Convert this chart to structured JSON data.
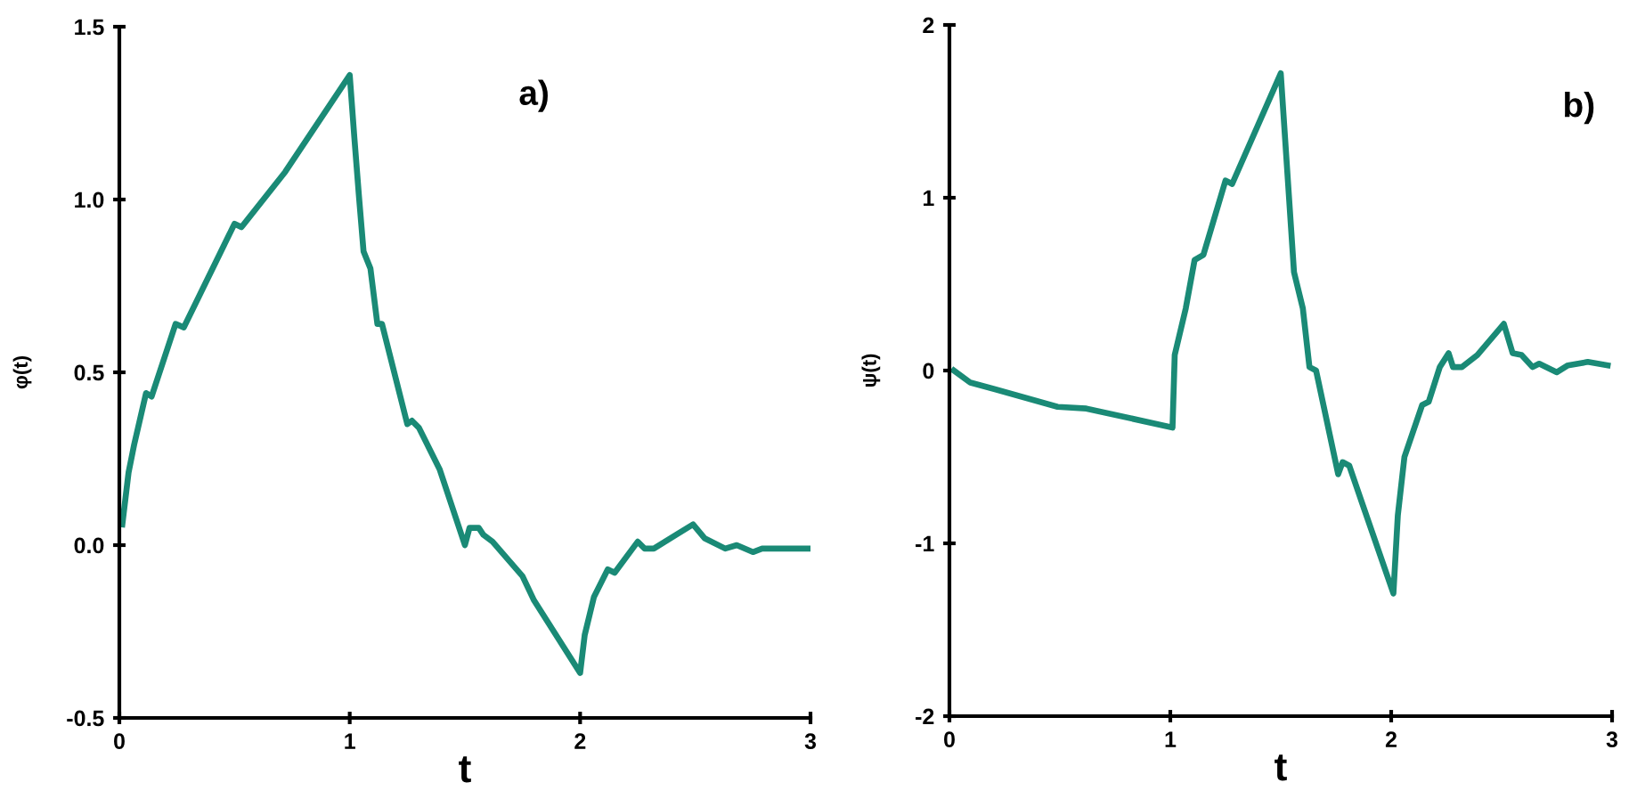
{
  "chart_data": [
    {
      "type": "line",
      "title": "a)",
      "xlabel": "t",
      "ylabel": "φ(t)",
      "xlim": [
        0,
        3
      ],
      "ylim": [
        -0.5,
        1.5
      ],
      "xticks": [
        0,
        1,
        2,
        3
      ],
      "yticks": [
        {
          "value": -0.5,
          "label": "-0.5"
        },
        {
          "value": 0,
          "label": "0.0"
        },
        {
          "value": 0.5,
          "label": "0.5"
        },
        {
          "value": 1,
          "label": "1.0"
        },
        {
          "value": 1.5,
          "label": "1.5"
        }
      ],
      "grid": false,
      "legend": false,
      "series": [
        {
          "color": "#1a8a76",
          "x": [
            0.013,
            0.04,
            0.064,
            0.116,
            0.14,
            0.244,
            0.28,
            0.5,
            0.53,
            0.72,
            1.0,
            1.02,
            1.04,
            1.06,
            1.09,
            1.12,
            1.14,
            1.25,
            1.27,
            1.3,
            1.39,
            1.5,
            1.52,
            1.56,
            1.58,
            1.62,
            1.75,
            1.8,
            2.0,
            2.02,
            2.06,
            2.12,
            2.15,
            2.25,
            2.28,
            2.32,
            2.49,
            2.54,
            2.63,
            2.68,
            2.75,
            2.79,
            3.0
          ],
          "values": [
            0.06,
            0.21,
            0.29,
            0.44,
            0.43,
            0.64,
            0.63,
            0.93,
            0.92,
            1.08,
            1.36,
            1.18,
            1.01,
            0.85,
            0.8,
            0.64,
            0.64,
            0.35,
            0.36,
            0.34,
            0.22,
            0.0,
            0.05,
            0.05,
            0.03,
            0.01,
            -0.09,
            -0.16,
            -0.37,
            -0.26,
            -0.15,
            -0.07,
            -0.08,
            0.01,
            -0.01,
            -0.01,
            0.06,
            0.02,
            -0.01,
            0.0,
            -0.02,
            -0.01,
            -0.01
          ]
        }
      ]
    },
    {
      "type": "line",
      "title": "b)",
      "xlabel": "t",
      "ylabel": "ψ(t)",
      "xlim": [
        0,
        3
      ],
      "ylim": [
        -2,
        2
      ],
      "xticks": [
        0,
        1,
        2,
        3
      ],
      "yticks": [
        {
          "value": -2,
          "label": "-2"
        },
        {
          "value": -1,
          "label": "-1"
        },
        0,
        1,
        2
      ],
      "grid": false,
      "legend": false,
      "series": [
        {
          "color": "#1a8a76",
          "x": [
            0.02,
            0.095,
            0.21,
            0.49,
            0.62,
            1.01,
            1.02,
            1.07,
            1.11,
            1.15,
            1.25,
            1.28,
            1.5,
            1.56,
            1.6,
            1.63,
            1.66,
            1.76,
            1.78,
            1.81,
            1.88,
            2.01,
            2.03,
            2.06,
            2.14,
            2.17,
            2.22,
            2.26,
            2.28,
            2.32,
            2.39,
            2.51,
            2.55,
            2.59,
            2.64,
            2.67,
            2.75,
            2.8,
            2.89,
            2.98
          ],
          "values": [
            0.0,
            -0.07,
            -0.11,
            -0.21,
            -0.22,
            -0.33,
            0.09,
            0.36,
            0.64,
            0.67,
            1.1,
            1.08,
            1.72,
            0.57,
            0.36,
            0.02,
            0.0,
            -0.6,
            -0.53,
            -0.55,
            -0.81,
            -1.29,
            -0.84,
            -0.5,
            -0.2,
            -0.18,
            0.02,
            0.1,
            0.02,
            0.02,
            0.09,
            0.27,
            0.1,
            0.09,
            0.02,
            0.04,
            -0.01,
            0.03,
            0.05,
            0.03
          ]
        }
      ]
    }
  ]
}
